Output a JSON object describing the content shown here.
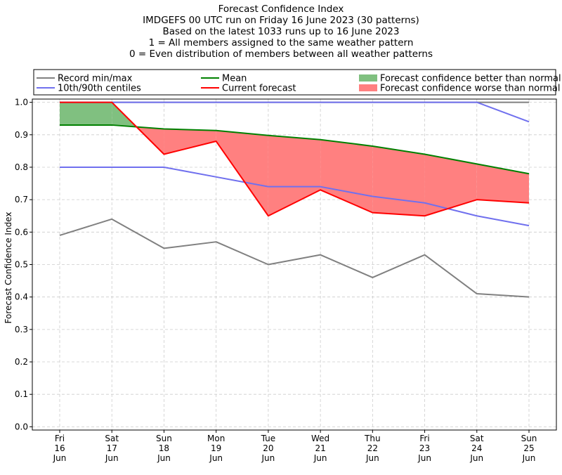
{
  "chart_data": {
    "type": "line",
    "title_lines": [
      "Forecast Confidence Index",
      "IMDGEFS 00 UTC run on Friday 16 June 2023 (30 patterns)",
      "Based on the latest 1033 runs up to 16 June 2023",
      "1 = All members assigned to the same weather pattern",
      "0 = Even distribution of members between all weather patterns"
    ],
    "xlabel": "",
    "ylabel": "Forecast Confidence Index",
    "ylim": [
      -0.01,
      1.01
    ],
    "yticks": [
      "0.0",
      "0.1",
      "0.2",
      "0.3",
      "0.4",
      "0.5",
      "0.6",
      "0.7",
      "0.8",
      "0.9",
      "1.0"
    ],
    "grid": true,
    "legend_position": "top",
    "categories": [
      [
        "Fri",
        "16",
        "Jun"
      ],
      [
        "Sat",
        "17",
        "Jun"
      ],
      [
        "Sun",
        "18",
        "Jun"
      ],
      [
        "Mon",
        "19",
        "Jun"
      ],
      [
        "Tue",
        "20",
        "Jun"
      ],
      [
        "Wed",
        "21",
        "Jun"
      ],
      [
        "Thu",
        "22",
        "Jun"
      ],
      [
        "Fri",
        "23",
        "Jun"
      ],
      [
        "Sat",
        "24",
        "Jun"
      ],
      [
        "Sun",
        "25",
        "Jun"
      ]
    ],
    "series": {
      "record_min": {
        "values": [
          0.59,
          0.64,
          0.55,
          0.57,
          0.5,
          0.53,
          0.46,
          0.53,
          0.41,
          0.4
        ],
        "color": "#808080"
      },
      "record_max": {
        "values": [
          1.0,
          1.0,
          1.0,
          1.0,
          1.0,
          1.0,
          1.0,
          1.0,
          1.0,
          1.0
        ],
        "color": "#808080"
      },
      "centile_10": {
        "values": [
          0.8,
          0.8,
          0.8,
          0.77,
          0.74,
          0.74,
          0.71,
          0.69,
          0.65,
          0.62
        ],
        "color": "#7070ee"
      },
      "centile_90": {
        "values": [
          1.0,
          1.0,
          1.0,
          1.0,
          1.0,
          1.0,
          1.0,
          1.0,
          1.0,
          0.94
        ],
        "color": "#7070ee"
      },
      "mean": {
        "values": [
          0.93,
          0.93,
          0.918,
          0.913,
          0.898,
          0.885,
          0.865,
          0.84,
          0.81,
          0.78
        ],
        "color": "#008000"
      },
      "current": {
        "values": [
          1.0,
          1.0,
          0.84,
          0.88,
          0.65,
          0.73,
          0.66,
          0.65,
          0.7,
          0.69
        ],
        "color": "#ff0000"
      }
    },
    "fills": {
      "better": {
        "color": "#80c080"
      },
      "worse": {
        "color": "#ff8080"
      }
    },
    "legend": [
      {
        "label": "Record min/max",
        "kind": "line",
        "color": "#808080"
      },
      {
        "label": "Mean",
        "kind": "line",
        "color": "#008000"
      },
      {
        "label": "Forecast confidence better than normal",
        "kind": "patch",
        "color": "#80c080"
      },
      {
        "label": "10th/90th centiles",
        "kind": "line",
        "color": "#7070ee"
      },
      {
        "label": "Current forecast",
        "kind": "line",
        "color": "#ff0000"
      },
      {
        "label": "Forecast confidence worse than normal",
        "kind": "patch",
        "color": "#ff8080"
      }
    ]
  }
}
